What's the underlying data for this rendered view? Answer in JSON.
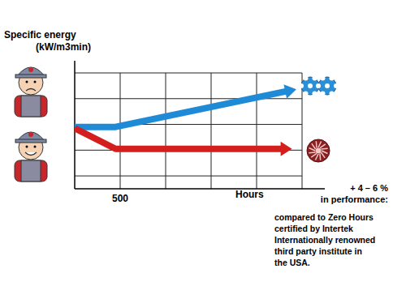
{
  "chart_data": {
    "type": "line",
    "y_label": [
      "Specific energy",
      "(kW/m3min)"
    ],
    "x_label": "Hours",
    "annotation": [
      "+ 4 – 6 %",
      "in performance:",
      "compared to Zero Hours",
      "certified by Intertek",
      "Internationally renowned",
      "third party institute in",
      "the USA."
    ],
    "series": [
      {
        "color": "#1f8ad6",
        "x": [
          0,
          450,
          2350
        ],
        "values": [
          2.4,
          2.4,
          3.8
        ]
      },
      {
        "color": "#d41f1f",
        "x": [
          0,
          450,
          2300
        ],
        "values": [
          2.35,
          1.55,
          1.55
        ]
      }
    ],
    "xlim": [
      0,
      2750
    ],
    "xticks": [
      500
    ],
    "ylim": [
      0,
      4.5
    ],
    "yticks": [
      0.5,
      1.5,
      2.5,
      3.5,
      4.5
    ],
    "grid": true,
    "tick_labels": "x"
  }
}
